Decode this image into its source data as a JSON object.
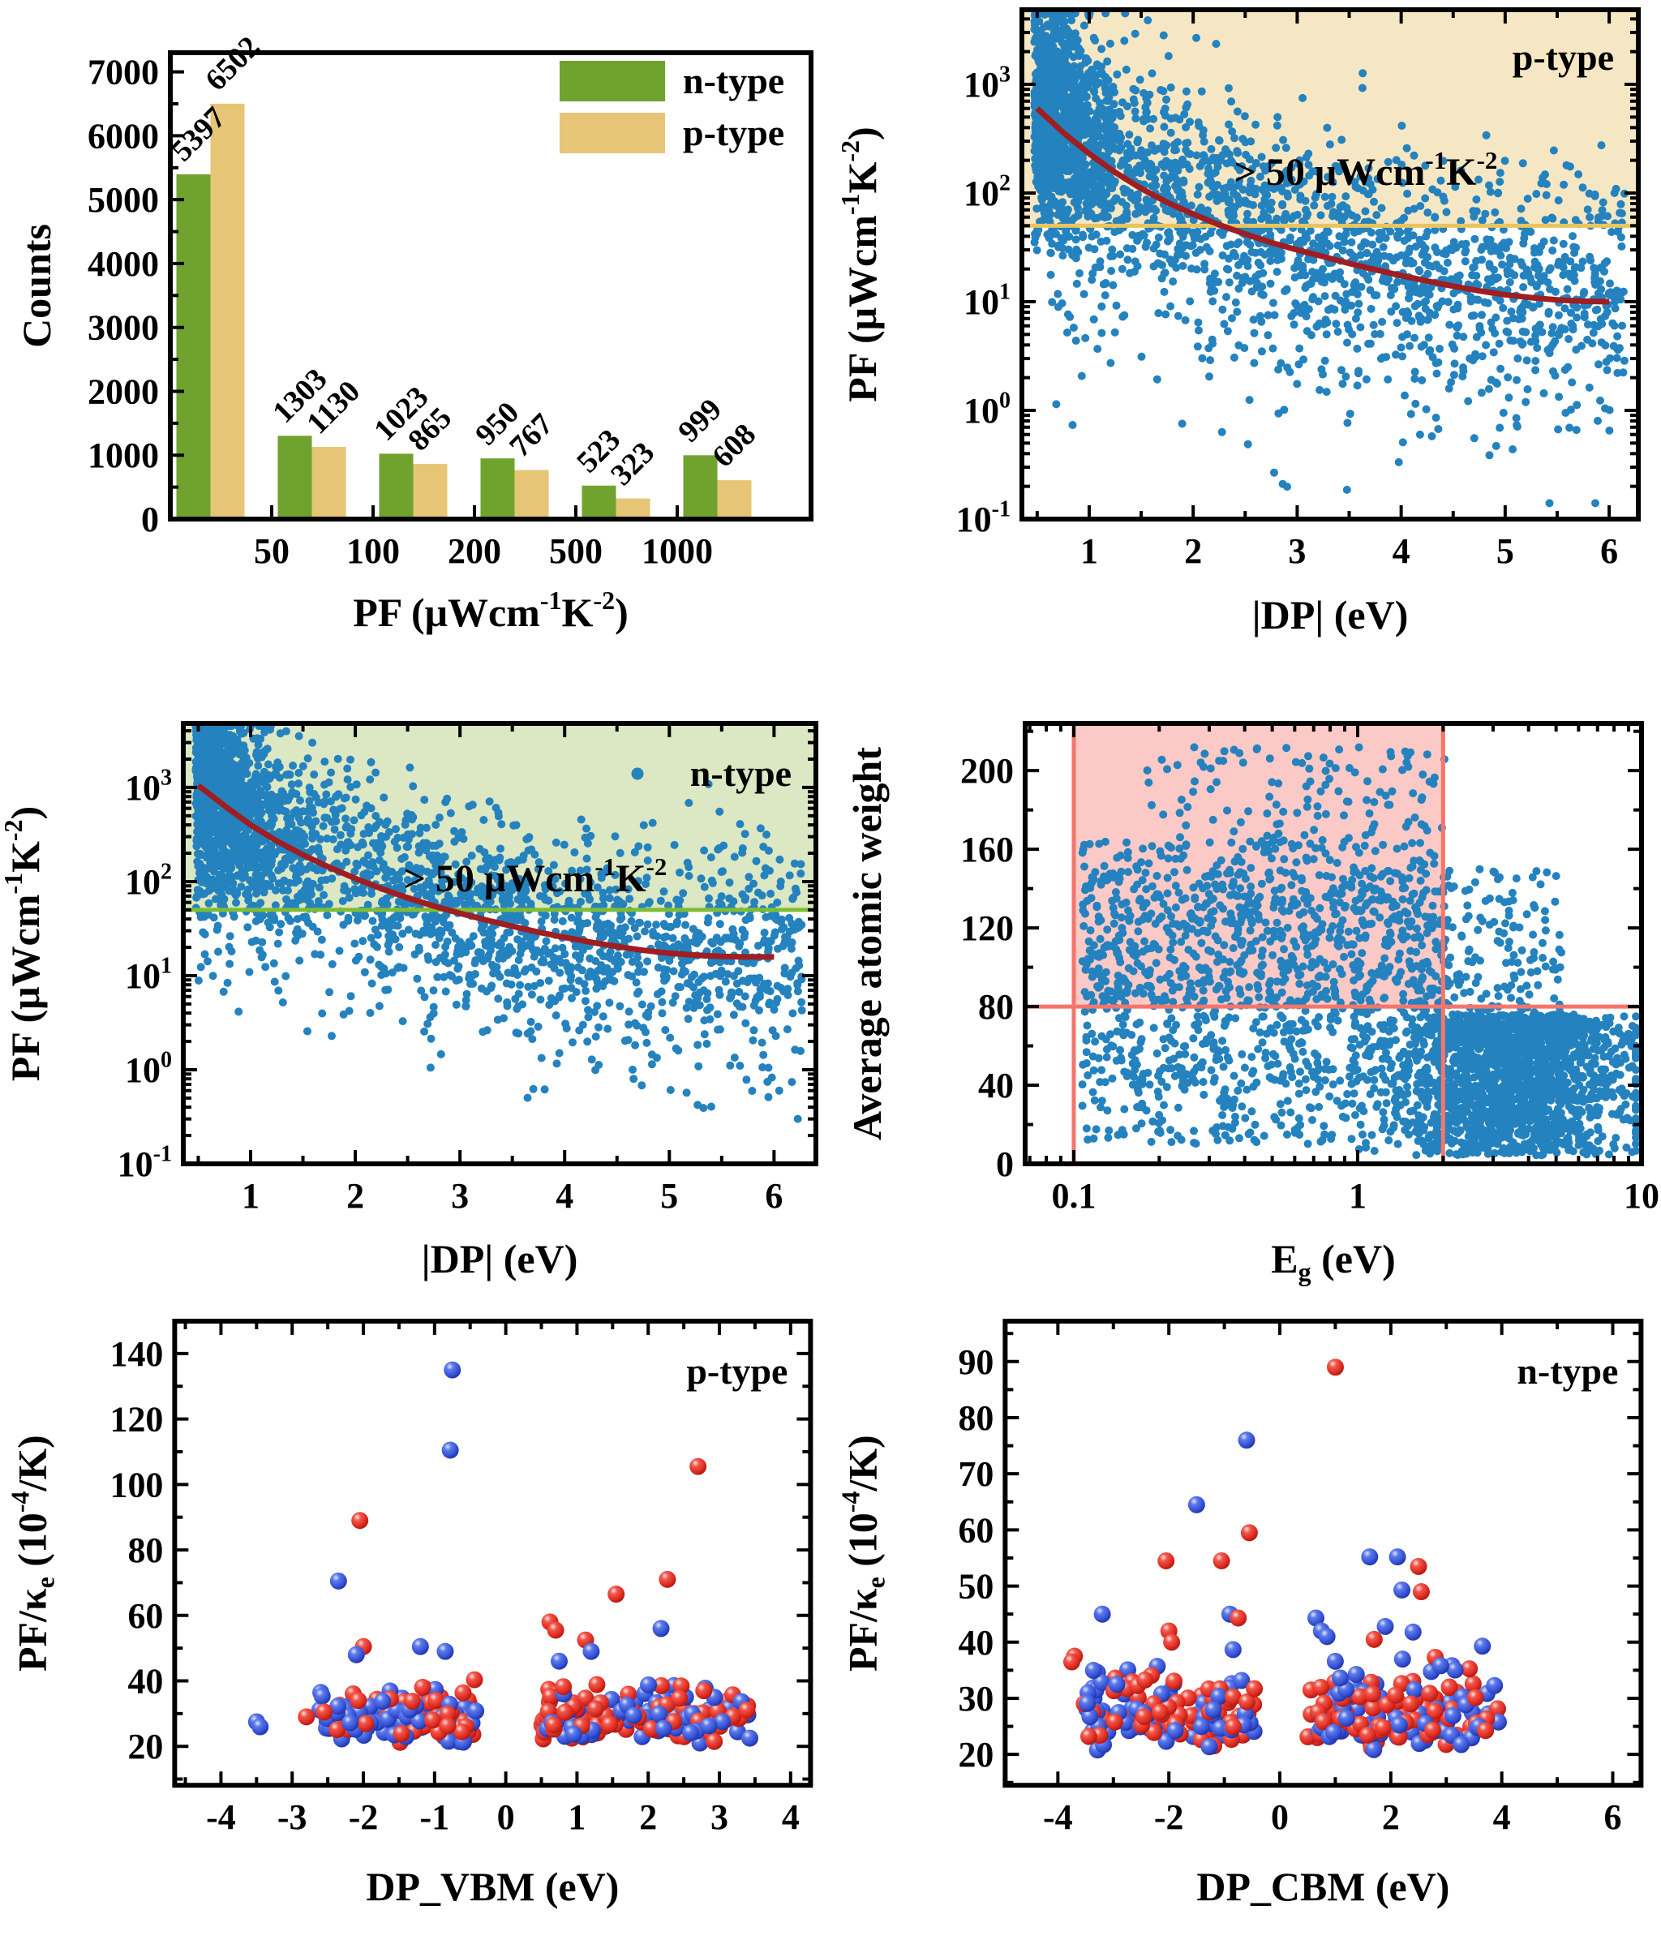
{
  "figure_title": "",
  "colors": {
    "frame": "#000000",
    "scatter_blue": "#2482be",
    "trend_red": "#9e1e22",
    "bar_green": "#6fa32e",
    "bar_tan": "#e6c676",
    "region_tan_fill": "#f5e7c4",
    "region_tan_line": "#e9c45f",
    "region_green_fill": "#dce7c3",
    "region_green_line": "#7fbc35",
    "region_pink_fill": "#fbc9c6",
    "region_pink_line": "#f6756b",
    "sphere_red": "#e2352a",
    "sphere_blue": "#3a55d9"
  },
  "chart_data": [
    {
      "id": "hist",
      "type": "bar",
      "title": "",
      "ylabel": [
        [
          "Counts",
          ""
        ]
      ],
      "xlabel": [
        [
          "PF (μWcm",
          ""
        ],
        [
          "-1",
          "sup"
        ],
        [
          "K",
          ""
        ],
        [
          "-2",
          "sup"
        ],
        [
          ")",
          ""
        ]
      ],
      "axes": {
        "x": {
          "type": "linear",
          "min": 0,
          "max": 6.32,
          "majors": [
            1,
            2,
            3,
            4,
            5
          ],
          "labels": [
            "50",
            "100",
            "200",
            "500",
            "1000"
          ],
          "minors": []
        },
        "y": {
          "type": "linear",
          "min": 0,
          "max": 7300,
          "majors": [
            0,
            1000,
            2000,
            3000,
            4000,
            5000,
            6000,
            7000
          ],
          "labels": [
            "0",
            "1000",
            "2000",
            "3000",
            "4000",
            "5000",
            "6000",
            "7000"
          ],
          "minors": [
            500,
            1500,
            2500,
            3500,
            4500,
            5500,
            6500
          ]
        }
      },
      "categories": [
        "<50",
        "50-100",
        "100-200",
        "200-500",
        "500-1000",
        ">1000"
      ],
      "series": [
        {
          "name": "n-type",
          "color": "#6fa32e",
          "values": [
            5397,
            1303,
            1023,
            950,
            523,
            999
          ]
        },
        {
          "name": "p-type",
          "color": "#e6c676",
          "values": [
            6502,
            1130,
            865,
            767,
            323,
            608
          ]
        }
      ],
      "legend": {
        "labels": [
          "n-type",
          "p-type"
        ]
      }
    },
    {
      "id": "pfdp-p",
      "type": "scatter-dp",
      "tag": "p-type",
      "tag_dot": false,
      "annotation": [
        [
          "> 50 μWcm",
          ""
        ],
        [
          "-1",
          "sup"
        ],
        [
          "K",
          ""
        ],
        [
          "-2",
          "sup"
        ]
      ],
      "threshold": 50,
      "region": {
        "fill": "#f5e7c4",
        "line": "#e9c45f"
      },
      "dot_color": "#2482be",
      "curve_color": "#9e1e22",
      "xlabel": [
        [
          "|DP| (eV)",
          ""
        ]
      ],
      "ylabel": [
        [
          "PF (μWcm",
          ""
        ],
        [
          "-1",
          "sup"
        ],
        [
          "K",
          ""
        ],
        [
          "-2",
          "sup"
        ],
        [
          ")",
          ""
        ]
      ],
      "axes": {
        "x": {
          "type": "linear",
          "min": 0.353,
          "max": 6.28,
          "majors": [
            1,
            2,
            3,
            4,
            5,
            6
          ],
          "labels": [
            "1",
            "2",
            "3",
            "4",
            "5",
            "6"
          ],
          "minors": [
            0.5,
            1.5,
            2.5,
            3.5,
            4.5,
            5.5
          ]
        },
        "y": {
          "type": "log",
          "min": 0.1,
          "max": 4860,
          "exps": [
            -1,
            0,
            1,
            2,
            3
          ]
        }
      },
      "trend": {
        "x0": 0.5,
        "dx": 0.25,
        "y": [
          600,
          360,
          230,
          155,
          110,
          82,
          64,
          51,
          42,
          35,
          30,
          26,
          22.5,
          19.7,
          17.4,
          15.5,
          13.9,
          12.6,
          11.6,
          10.9,
          10.4,
          10.1,
          10
        ]
      },
      "cloud": {
        "n": 2800,
        "seed": 7,
        "sigma": 0.5,
        "bias": 0.1,
        "frac_lowx": 0.3,
        "lowx_scale": 0.38,
        "x_pow": 1.3,
        "tail_frac": 0.1,
        "tail_mag": 1.6,
        "clip": [
          0.14,
          4500
        ]
      }
    },
    {
      "id": "pfdp-n",
      "type": "scatter-dp",
      "tag": "n-type",
      "tag_dot": true,
      "annotation": [
        [
          "> 50 μWcm",
          ""
        ],
        [
          "-1",
          "sup"
        ],
        [
          "K",
          ""
        ],
        [
          "-2",
          "sup"
        ]
      ],
      "threshold": 50,
      "region": {
        "fill": "#dce7c3",
        "line": "#7fbc35"
      },
      "dot_color": "#2482be",
      "curve_color": "#9e1e22",
      "xlabel": [
        [
          "|DP| (eV)",
          ""
        ]
      ],
      "ylabel": [
        [
          "PF (μWcm",
          ""
        ],
        [
          "-1",
          "sup"
        ],
        [
          "K",
          ""
        ],
        [
          "-2",
          "sup"
        ],
        [
          ")",
          ""
        ]
      ],
      "axes": {
        "x": {
          "type": "linear",
          "min": 0.357,
          "max": 6.4,
          "majors": [
            1,
            2,
            3,
            4,
            5,
            6
          ],
          "labels": [
            "1",
            "2",
            "3",
            "4",
            "5",
            "6"
          ],
          "minors": [
            0.5,
            1.5,
            2.5,
            3.5,
            4.5,
            5.5
          ]
        },
        "y": {
          "type": "log",
          "min": 0.1,
          "max": 4790,
          "exps": [
            -1,
            0,
            1,
            2,
            3
          ]
        }
      },
      "trend": {
        "x0": 0.5,
        "dx": 0.25,
        "y": [
          1050,
          640,
          400,
          270,
          192,
          142,
          108,
          84,
          67,
          55,
          46,
          39,
          33.5,
          29,
          25.5,
          22.7,
          20.4,
          18.6,
          17.3,
          16.5,
          16,
          15.8,
          15.8
        ]
      },
      "cloud": {
        "n": 2800,
        "seed": 11,
        "sigma": 0.5,
        "bias": 0.1,
        "frac_lowx": 0.3,
        "lowx_scale": 0.38,
        "x_pow": 1.3,
        "tail_frac": 0.1,
        "tail_mag": 1.5,
        "clip": [
          0.3,
          4500
        ]
      }
    },
    {
      "id": "weg",
      "type": "scatter-eg",
      "xlabel": [
        [
          "E",
          ""
        ],
        [
          "g",
          "sub"
        ],
        [
          " (eV)",
          ""
        ]
      ],
      "ylabel": [
        [
          "Average atomic weight",
          ""
        ]
      ],
      "dot_color": "#2482be",
      "region": {
        "x1": 0.1,
        "x2": 2,
        "y": 80,
        "fill": "#fbc9c6",
        "line": "#f6756b"
      },
      "axes": {
        "x": {
          "type": "log",
          "min": 0.0674,
          "max": 10,
          "majors": [
            0.1,
            1,
            10
          ],
          "labels": [
            "0.1",
            "1",
            "10"
          ],
          "minors": [
            0.07,
            0.08,
            0.09,
            0.2,
            0.3,
            0.4,
            0.5,
            0.6,
            0.7,
            0.8,
            0.9,
            2,
            3,
            4,
            5,
            6,
            7,
            8,
            9
          ]
        },
        "y": {
          "type": "linear",
          "min": 0,
          "max": 224,
          "majors": [
            0,
            40,
            80,
            120,
            160,
            200
          ],
          "labels": [
            "0",
            "40",
            "80",
            "120",
            "160",
            "200"
          ],
          "minors": [
            20,
            60,
            100,
            140,
            180,
            220
          ]
        }
      },
      "cloud": {
        "n": 3400,
        "seed": 13,
        "comps": [
          {
            "w": 0.5,
            "lx": [
              "norm",
              0.55,
              0.21,
              -0.95,
              0.98
            ],
            "wt": [
              "pow",
              4,
              72,
              0.85
            ]
          },
          {
            "w": 0.27,
            "lx": [
              "uni",
              -0.97,
              0.72
            ],
            "wt": [
              "uni",
              10,
              150
            ]
          },
          {
            "w": 0.15,
            "lx": [
              "uni",
              -0.97,
              0.33
            ],
            "wt": [
              "uni",
              78,
              165
            ]
          },
          {
            "w": 0.05,
            "lx": [
              "uni",
              -0.85,
              0.58
            ],
            "wt": [
              "uni",
              40,
              92
            ]
          },
          {
            "w": 0.03,
            "lx": [
              "uni",
              -0.75,
              0.32
            ],
            "wt": [
              "uni",
              160,
              212
            ]
          }
        ]
      }
    },
    {
      "id": "vbm",
      "type": "scatter-sphere",
      "tag": "p-type",
      "xlabel": [
        [
          "DP_VBM (eV)",
          ""
        ]
      ],
      "ylabel": [
        [
          "PF/κ",
          ""
        ],
        [
          "e",
          "sub"
        ],
        [
          " (10",
          ""
        ],
        [
          "-4",
          "sup"
        ],
        [
          "/K)",
          ""
        ]
      ],
      "colors": {
        "r": "#e2352a",
        "b": "#3a55d9"
      },
      "axes": {
        "x": {
          "type": "linear",
          "min": -4.65,
          "max": 4.28,
          "majors": [
            -4,
            -3,
            -2,
            -1,
            0,
            1,
            2,
            3,
            4
          ],
          "labels": [
            "-4",
            "-3",
            "-2",
            "-1",
            "0",
            "1",
            "2",
            "3",
            "4"
          ],
          "minors": [
            -4.5,
            -3.5,
            -2.5,
            -1.5,
            -0.5,
            0.5,
            1.5,
            2.5,
            3.5
          ]
        },
        "y": {
          "type": "linear",
          "min": 8.1,
          "max": 149.9,
          "majors": [
            20,
            40,
            60,
            80,
            100,
            120,
            140
          ],
          "labels": [
            "20",
            "40",
            "60",
            "80",
            "100",
            "120",
            "140"
          ],
          "minors": [
            10,
            30,
            50,
            70,
            90,
            110,
            130
          ]
        }
      },
      "cluster": {
        "seed": 17,
        "ymax": 51,
        "y": [
          20.5,
          5.2,
          9
        ],
        "red_frac": 0.55,
        "lobes": [
          {
            "n": 150,
            "x": [
              -2.62,
              -0.42
            ]
          },
          {
            "n": 175,
            "x": [
              0.48,
              3.45
            ]
          }
        ]
      },
      "outliers": [
        [
          -0.75,
          135,
          "b"
        ],
        [
          -0.78,
          110.5,
          "b"
        ],
        [
          2.7,
          105.5,
          "r"
        ],
        [
          -2.05,
          89,
          "r"
        ],
        [
          2.27,
          71,
          "r"
        ],
        [
          -2.35,
          70.5,
          "b"
        ],
        [
          1.55,
          66.5,
          "r"
        ],
        [
          0.62,
          58,
          "r"
        ],
        [
          0.7,
          55.5,
          "r"
        ],
        [
          2.18,
          56,
          "b"
        ],
        [
          1.12,
          52.5,
          "r"
        ],
        [
          -1.2,
          50.5,
          "b"
        ],
        [
          -2.0,
          50.5,
          "r"
        ],
        [
          1.2,
          49,
          "b"
        ],
        [
          -0.85,
          49,
          "b"
        ],
        [
          -2.1,
          48,
          "b"
        ],
        [
          0.75,
          46,
          "b"
        ],
        [
          -3.5,
          27.5,
          "b"
        ],
        [
          -3.45,
          26,
          "b"
        ],
        [
          -2.8,
          29,
          "r"
        ],
        [
          -2.55,
          30.5,
          "r"
        ]
      ]
    },
    {
      "id": "cbm",
      "type": "scatter-sphere",
      "tag": "n-type",
      "xlabel": [
        [
          "DP_CBM (eV)",
          ""
        ]
      ],
      "ylabel": [
        [
          "PF/κ",
          ""
        ],
        [
          "e",
          "sub"
        ],
        [
          " (10",
          ""
        ],
        [
          "-4",
          "sup"
        ],
        [
          "/K)",
          ""
        ]
      ],
      "colors": {
        "r": "#e2352a",
        "b": "#3a55d9"
      },
      "axes": {
        "x": {
          "type": "linear",
          "min": -4.95,
          "max": 6.51,
          "majors": [
            -4,
            -2,
            0,
            2,
            4,
            6
          ],
          "labels": [
            "-4",
            "-2",
            "0",
            "2",
            "4",
            "6"
          ],
          "minors": [
            -3,
            -1,
            1,
            3,
            5
          ]
        },
        "y": {
          "type": "linear",
          "min": 14.5,
          "max": 97.2,
          "majors": [
            20,
            30,
            40,
            50,
            60,
            70,
            80,
            90
          ],
          "labels": [
            "20",
            "30",
            "40",
            "50",
            "60",
            "70",
            "80",
            "90"
          ],
          "minors": [
            15,
            25,
            35,
            45,
            55,
            65,
            75,
            85,
            95
          ]
        }
      },
      "cluster": {
        "seed": 19,
        "ymax": 40,
        "y": [
          20.5,
          4.2,
          7
        ],
        "red_frac": 0.55,
        "lobes": [
          {
            "n": 130,
            "x": [
              -3.55,
              -0.45
            ]
          },
          {
            "n": 165,
            "x": [
              0.5,
              3.95
            ]
          }
        ]
      },
      "outliers": [
        [
          1.0,
          89,
          "r"
        ],
        [
          -0.6,
          76,
          "b"
        ],
        [
          -1.5,
          64.5,
          "b"
        ],
        [
          -0.55,
          59.5,
          "r"
        ],
        [
          -2.05,
          54.5,
          "r"
        ],
        [
          -1.05,
          54.5,
          "r"
        ],
        [
          1.62,
          55.2,
          "b"
        ],
        [
          2.12,
          55.2,
          "b"
        ],
        [
          2.5,
          53.5,
          "r"
        ],
        [
          2.2,
          49.3,
          "b"
        ],
        [
          2.55,
          49,
          "r"
        ],
        [
          -3.2,
          45,
          "b"
        ],
        [
          -0.9,
          45,
          "b"
        ],
        [
          -0.75,
          44.3,
          "r"
        ],
        [
          0.65,
          44.3,
          "b"
        ],
        [
          -2.0,
          42,
          "r"
        ],
        [
          1.9,
          42.8,
          "b"
        ],
        [
          2.4,
          41.8,
          "b"
        ],
        [
          0.75,
          42,
          "b"
        ],
        [
          0.85,
          41,
          "b"
        ],
        [
          -1.95,
          40,
          "r"
        ],
        [
          1.7,
          40.5,
          "r"
        ],
        [
          -3.7,
          37.5,
          "r"
        ],
        [
          -3.75,
          36.5,
          "r"
        ],
        [
          3.65,
          39.3,
          "b"
        ],
        [
          2.8,
          37.3,
          "r"
        ],
        [
          2.9,
          35.8,
          "b"
        ]
      ]
    }
  ]
}
